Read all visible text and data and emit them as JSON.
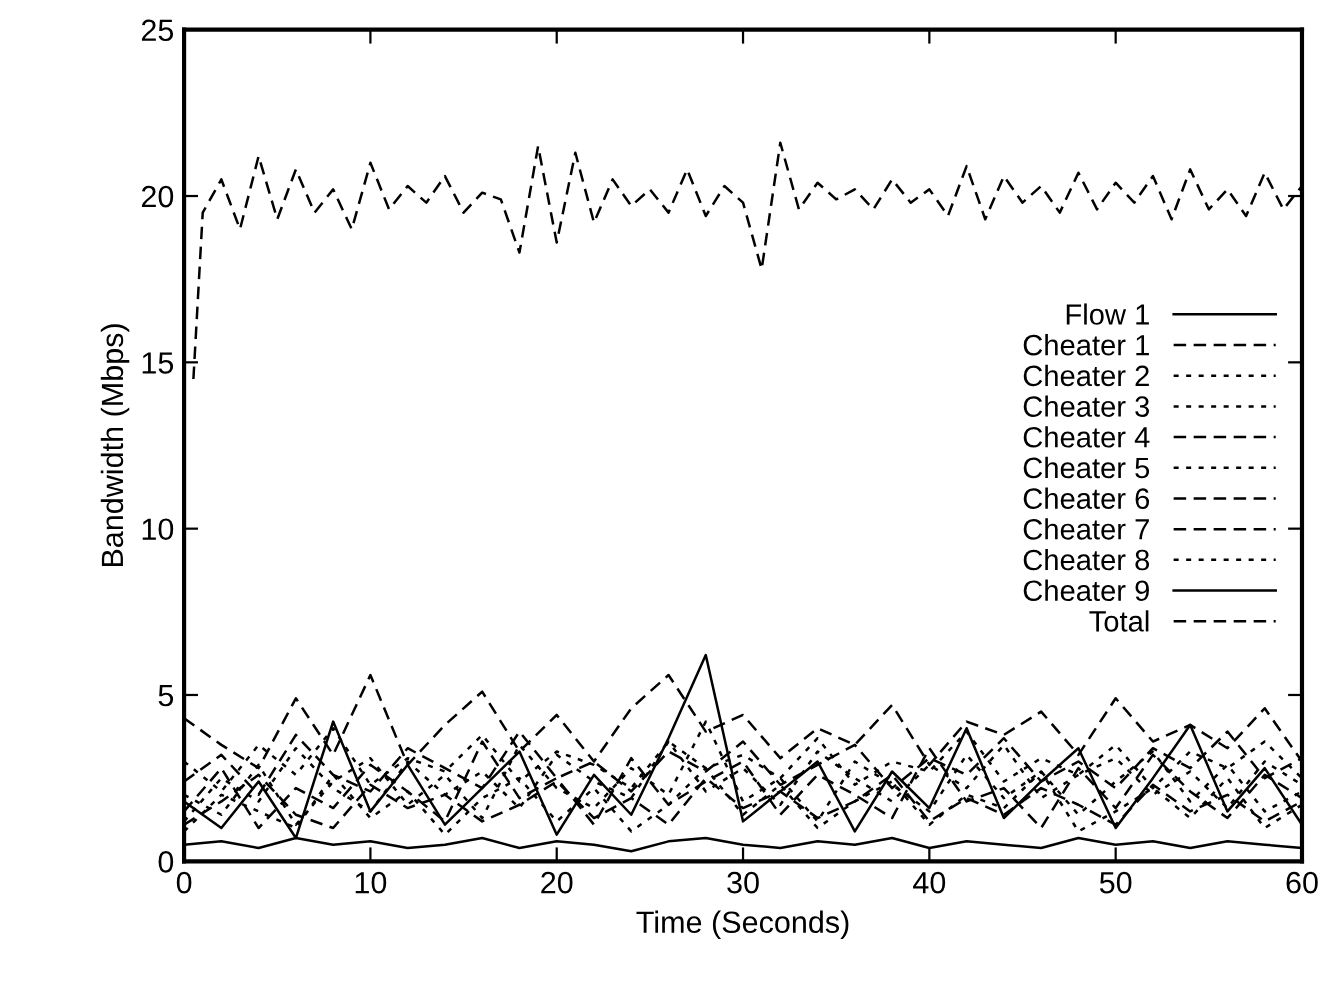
{
  "chart_data": {
    "type": "line",
    "xlabel": "Time (Seconds)",
    "ylabel": "Bandwidth (Mbps)",
    "xlim": [
      0,
      60
    ],
    "ylim": [
      0,
      25
    ],
    "xticks": [
      0,
      10,
      20,
      30,
      40,
      50,
      60
    ],
    "yticks": [
      0,
      5,
      10,
      15,
      20,
      25
    ],
    "grid": false,
    "legend": "right",
    "marker": "none",
    "x": [
      0,
      2,
      4,
      6,
      8,
      10,
      12,
      14,
      16,
      18,
      20,
      22,
      24,
      26,
      28,
      30,
      32,
      34,
      36,
      38,
      40,
      42,
      44,
      46,
      48,
      50,
      52,
      54,
      56,
      58,
      60
    ],
    "series": [
      {
        "name": "Flow 1",
        "color": "#000000",
        "line_style": "solid",
        "values": [
          0.5,
          0.6,
          0.4,
          0.7,
          0.5,
          0.6,
          0.4,
          0.5,
          0.7,
          0.4,
          0.6,
          0.5,
          0.3,
          0.6,
          0.7,
          0.5,
          0.4,
          0.6,
          0.5,
          0.7,
          0.4,
          0.6,
          0.5,
          0.4,
          0.7,
          0.5,
          0.6,
          0.4,
          0.6,
          0.5,
          0.4
        ]
      },
      {
        "name": "Cheater 1",
        "color": "#000000",
        "line_style": "dashed",
        "values": [
          4.3,
          3.5,
          2.8,
          4.9,
          3.2,
          5.6,
          2.9,
          4.1,
          5.1,
          3.3,
          4.4,
          3.0,
          4.6,
          5.6,
          3.9,
          4.4,
          3.1,
          4.0,
          3.5,
          4.7,
          2.9,
          4.2,
          3.8,
          4.5,
          3.2,
          4.9,
          3.6,
          4.1,
          3.4,
          4.6,
          3.0
        ]
      },
      {
        "name": "Cheater 2",
        "color": "#000000",
        "line_style": "dotted",
        "values": [
          1.2,
          2.5,
          1.8,
          3.4,
          2.2,
          1.5,
          3.0,
          2.0,
          2.7,
          1.6,
          3.2,
          2.4,
          1.9,
          3.6,
          2.1,
          2.8,
          1.7,
          3.3,
          2.5,
          1.8,
          2.9,
          2.2,
          3.5,
          1.9,
          2.6,
          3.1,
          2.0,
          2.7,
          1.6,
          3.0,
          2.3
        ]
      },
      {
        "name": "Cheater 3",
        "color": "#000000",
        "line_style": "dotted",
        "values": [
          2.0,
          1.4,
          2.9,
          1.1,
          2.4,
          3.1,
          1.7,
          2.6,
          1.3,
          3.5,
          2.2,
          1.6,
          2.8,
          2.0,
          4.2,
          1.8,
          2.5,
          1.2,
          3.0,
          2.3,
          1.5,
          3.2,
          1.9,
          2.7,
          1.4,
          2.4,
          3.3,
          1.8,
          2.9,
          1.5,
          2.1
        ]
      },
      {
        "name": "Cheater 4",
        "color": "#000000",
        "line_style": "dashed",
        "values": [
          1.5,
          2.8,
          1.0,
          2.2,
          1.6,
          2.9,
          2.1,
          1.2,
          3.6,
          1.9,
          2.5,
          1.1,
          3.1,
          1.7,
          2.4,
          3.0,
          1.4,
          2.6,
          2.0,
          1.3,
          3.4,
          1.8,
          2.2,
          1.0,
          2.8,
          1.6,
          3.2,
          2.1,
          1.3,
          2.6,
          1.9
        ]
      },
      {
        "name": "Cheater 5",
        "color": "#000000",
        "line_style": "dotted",
        "values": [
          0.9,
          2.0,
          1.5,
          1.0,
          2.6,
          1.3,
          2.1,
          0.8,
          1.9,
          2.5,
          1.2,
          2.2,
          0.9,
          1.7,
          2.8,
          1.4,
          2.3,
          1.0,
          1.8,
          2.4,
          1.1,
          2.0,
          1.6,
          2.7,
          0.9,
          1.5,
          2.2,
          1.3,
          2.5,
          1.0,
          1.7
        ]
      },
      {
        "name": "Cheater 6",
        "color": "#000000",
        "line_style": "dashed",
        "values": [
          2.4,
          3.2,
          2.0,
          3.8,
          2.6,
          2.1,
          3.4,
          2.8,
          2.2,
          3.9,
          2.5,
          3.0,
          2.1,
          3.3,
          2.7,
          3.6,
          2.3,
          2.9,
          3.5,
          2.2,
          3.1,
          2.6,
          3.7,
          2.4,
          3.0,
          2.2,
          3.4,
          2.8,
          3.9,
          2.5,
          3.1
        ]
      },
      {
        "name": "Cheater 7",
        "color": "#000000",
        "line_style": "dashed",
        "values": [
          1.1,
          1.8,
          2.6,
          1.4,
          1.0,
          2.3,
          1.6,
          2.0,
          1.2,
          1.7,
          2.4,
          1.3,
          1.9,
          1.1,
          2.5,
          1.6,
          2.1,
          1.3,
          1.8,
          2.6,
          1.2,
          1.9,
          1.4,
          2.2,
          1.7,
          1.1,
          2.3,
          1.5,
          2.0,
          1.2,
          1.8
        ]
      },
      {
        "name": "Cheater 8",
        "color": "#000000",
        "line_style": "dotted",
        "values": [
          3.0,
          2.1,
          3.5,
          2.6,
          4.0,
          2.3,
          3.1,
          2.7,
          3.8,
          2.4,
          3.3,
          2.9,
          2.2,
          3.6,
          2.8,
          3.2,
          2.5,
          3.7,
          2.3,
          3.0,
          2.7,
          3.9,
          2.4,
          3.1,
          2.6,
          3.5,
          2.2,
          3.3,
          2.8,
          3.6,
          2.5
        ]
      },
      {
        "name": "Cheater 9",
        "color": "#000000",
        "line_style": "solid",
        "values": [
          1.8,
          1.0,
          2.4,
          0.7,
          4.2,
          1.5,
          2.9,
          1.1,
          2.2,
          3.3,
          0.8,
          2.6,
          1.4,
          3.7,
          6.2,
          1.2,
          2.1,
          3.0,
          0.9,
          2.7,
          1.6,
          4.0,
          1.3,
          2.4,
          3.4,
          1.0,
          2.5,
          4.1,
          1.5,
          2.8,
          1.1
        ]
      },
      {
        "name": "Total",
        "color": "#000000",
        "line_style": "dashed",
        "x": [
          0.5,
          1,
          2,
          3,
          4,
          5,
          6,
          7,
          8,
          9,
          10,
          11,
          12,
          13,
          14,
          15,
          16,
          17,
          18,
          19,
          20,
          21,
          22,
          23,
          24,
          25,
          26,
          27,
          28,
          29,
          30,
          31,
          32,
          33,
          34,
          35,
          36,
          37,
          38,
          39,
          40,
          41,
          42,
          43,
          44,
          45,
          46,
          47,
          48,
          49,
          50,
          51,
          52,
          53,
          54,
          55,
          56,
          57,
          58,
          59,
          60
        ],
        "values": [
          14.5,
          19.5,
          20.5,
          19.0,
          21.2,
          19.3,
          20.8,
          19.5,
          20.2,
          19.0,
          21.0,
          19.6,
          20.3,
          19.8,
          20.6,
          19.5,
          20.1,
          19.9,
          18.3,
          21.5,
          18.6,
          21.3,
          19.2,
          20.5,
          19.7,
          20.2,
          19.5,
          20.8,
          19.4,
          20.3,
          19.8,
          17.8,
          21.6,
          19.6,
          20.4,
          19.9,
          20.2,
          19.6,
          20.5,
          19.8,
          20.2,
          19.4,
          20.9,
          19.3,
          20.6,
          19.8,
          20.3,
          19.5,
          20.7,
          19.6,
          20.4,
          19.8,
          20.6,
          19.3,
          20.8,
          19.6,
          20.2,
          19.4,
          20.7,
          19.6,
          20.3
        ]
      }
    ]
  }
}
